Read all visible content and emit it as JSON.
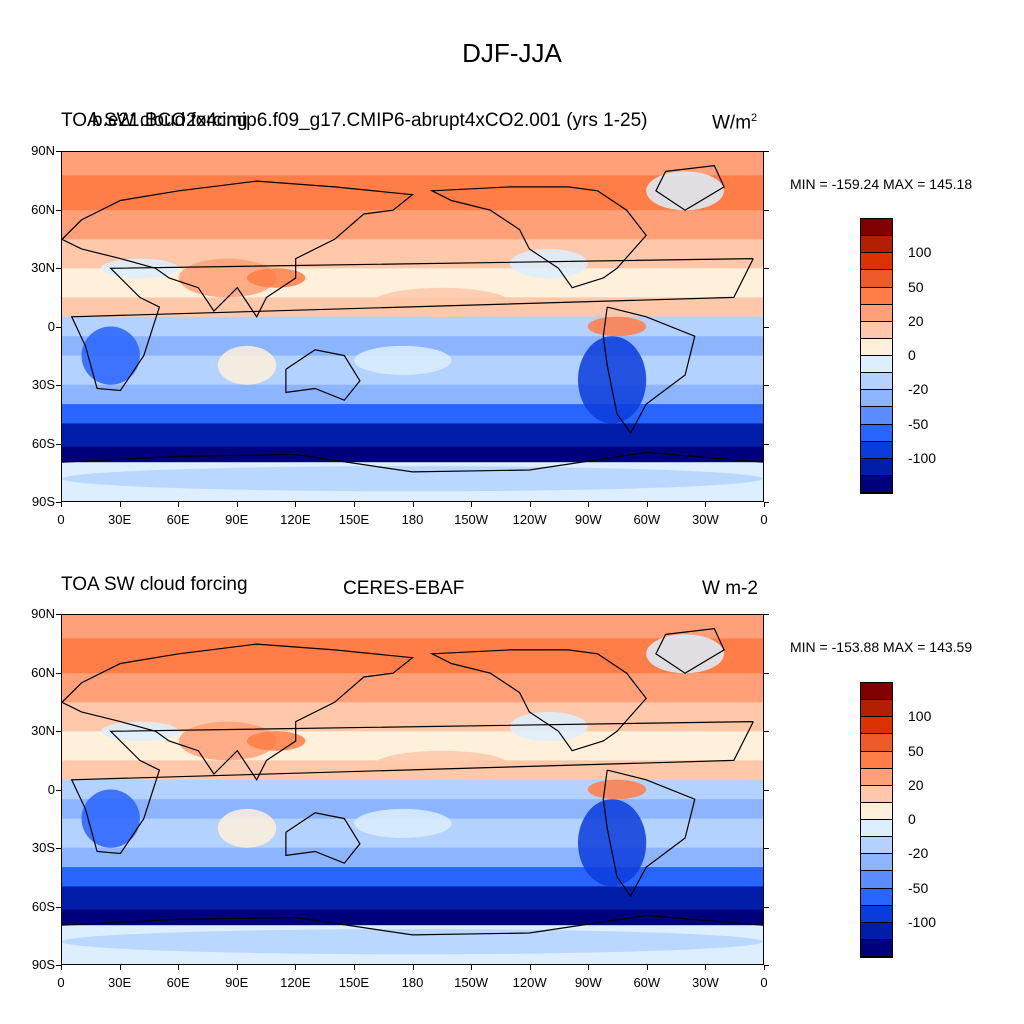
{
  "title": "DJF-JJA",
  "panels": [
    {
      "id": "model",
      "left_label": "TOA SW cloud forcing",
      "center_label": "b.e21.BCO2x4cmip6.f09_g17.CMIP6-abrupt4xCO2.001 (yrs 1-25)",
      "right_label": "W/m",
      "right_label_sup": "2",
      "min_max": "MIN = -159.24 MAX = 145.18"
    },
    {
      "id": "obs",
      "left_label": "TOA SW cloud forcing",
      "center_label": "CERES-EBAF",
      "right_label": "W m-2",
      "right_label_sup": "",
      "min_max": "MIN = -153.88 MAX = 143.59"
    }
  ],
  "map_data": {
    "projection": "cylindrical equidistant",
    "lon_range": [
      0,
      360
    ],
    "lat_range": [
      -90,
      90
    ],
    "lat_ticks": [
      "90N",
      "60N",
      "30N",
      "0",
      "30S",
      "60S",
      "90S"
    ],
    "lon_ticks": [
      "0",
      "30E",
      "60E",
      "90E",
      "120E",
      "150E",
      "180",
      "150W",
      "120W",
      "90W",
      "60W",
      "30W",
      "0"
    ]
  },
  "colorbar": {
    "labels": [
      "100",
      "50",
      "20",
      "0",
      "-20",
      "-50",
      "-100"
    ],
    "colors": [
      "#800000",
      "#b41e00",
      "#dc3200",
      "#f05a28",
      "#ff7d46",
      "#ffa078",
      "#ffc8aa",
      "#fff0dc",
      "#dceeff",
      "#b4d2ff",
      "#8cb4ff",
      "#5a8cff",
      "#2864ff",
      "#0a3cdc",
      "#001eaa",
      "#00007d"
    ]
  }
}
